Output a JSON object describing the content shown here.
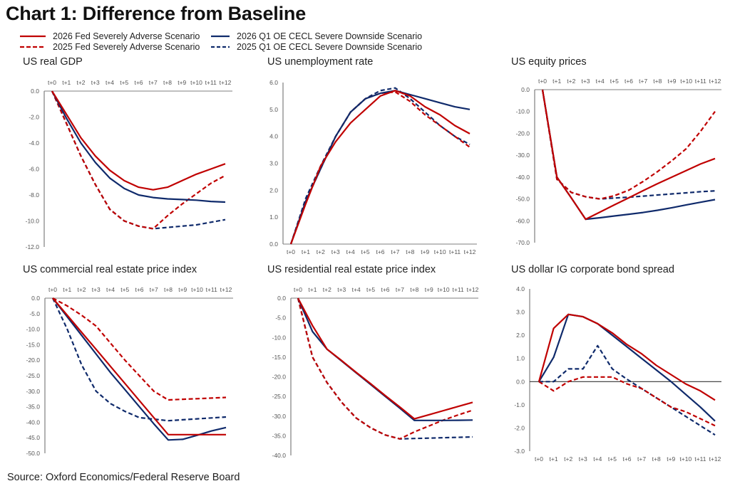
{
  "title": "Chart 1: Difference from Baseline",
  "source": "Source: Oxford Economics/Federal Reserve Board",
  "colors": {
    "fed": "#c00000",
    "oe": "#0f2a6b",
    "axis": "#7f7f7f"
  },
  "legend": [
    {
      "label": "2026 Fed Severely Adverse Scenario",
      "color": "#c00000",
      "dash": false
    },
    {
      "label": "2025 Fed Severely Adverse Scenario",
      "color": "#c00000",
      "dash": true
    },
    {
      "label": "2026 Q1 OE CECL Severe Downside Scenario",
      "color": "#0f2a6b",
      "dash": false
    },
    {
      "label": "2025 Q1 OE CECL Severe Downside Scenario",
      "color": "#0f2a6b",
      "dash": true
    }
  ],
  "chart_data": [
    {
      "type": "line",
      "title": "US real GDP",
      "categories": [
        "t+0",
        "t+1",
        "t+2",
        "t+3",
        "t+4",
        "t+5",
        "t+6",
        "t+7",
        "t+8",
        "t+9",
        "t+10",
        "t+11",
        "t+12"
      ],
      "ylim": [
        -12,
        0
      ],
      "yticks": [
        0,
        -2,
        -4,
        -6,
        -8,
        -10,
        -12
      ],
      "tick_decimals": 1,
      "xaxis_position": "top",
      "series": [
        {
          "name": "2025 Q1 OE CECL Severe Downside Scenario",
          "values": [
            0,
            -2.5,
            -5.0,
            -7.2,
            -9.1,
            -10.0,
            -10.4,
            -10.6,
            -10.5,
            -10.4,
            -10.3,
            -10.1,
            -9.9
          ]
        },
        {
          "name": "2025 Fed Severely Adverse Scenario",
          "values": [
            0,
            -2.5,
            -5.0,
            -7.2,
            -9.1,
            -10.0,
            -10.4,
            -10.6,
            -9.6,
            -8.7,
            -7.9,
            -7.1,
            -6.5
          ]
        },
        {
          "name": "2026 Q1 OE CECL Severe Downside Scenario",
          "values": [
            0,
            -2.1,
            -4.0,
            -5.5,
            -6.7,
            -7.5,
            -8.0,
            -8.2,
            -8.3,
            -8.35,
            -8.4,
            -8.5,
            -8.55
          ]
        },
        {
          "name": "2026 Fed Severely Adverse Scenario",
          "values": [
            0,
            -1.8,
            -3.6,
            -5.0,
            -6.1,
            -6.9,
            -7.4,
            -7.6,
            -7.4,
            -6.9,
            -6.4,
            -6.0,
            -5.6
          ]
        }
      ]
    },
    {
      "type": "line",
      "title": "US unemployment rate",
      "categories": [
        "t+0",
        "t+1",
        "t+2",
        "t+3",
        "t+4",
        "t+5",
        "t+6",
        "t+7",
        "t+8",
        "t+9",
        "t+10",
        "t+11",
        "t+12"
      ],
      "ylim": [
        0,
        6
      ],
      "yticks": [
        0,
        1,
        2,
        3,
        4,
        5,
        6
      ],
      "tick_decimals": 1,
      "xaxis_position": "bottom",
      "series": [
        {
          "name": "2025 Q1 OE CECL Severe Downside Scenario",
          "values": [
            0,
            1.7,
            2.9,
            4.0,
            4.9,
            5.4,
            5.7,
            5.8,
            5.4,
            4.9,
            4.4,
            4.0,
            3.7
          ]
        },
        {
          "name": "2025 Fed Severely Adverse Scenario",
          "values": [
            0,
            1.6,
            2.8,
            4.0,
            4.9,
            5.4,
            5.6,
            5.65,
            5.3,
            4.8,
            4.4,
            4.0,
            3.6
          ]
        },
        {
          "name": "2026 Q1 OE CECL Severe Downside Scenario",
          "values": [
            0,
            1.6,
            2.8,
            4.0,
            4.9,
            5.4,
            5.6,
            5.7,
            5.55,
            5.4,
            5.25,
            5.1,
            5.0
          ]
        },
        {
          "name": "2026 Fed Severely Adverse Scenario",
          "values": [
            0,
            1.5,
            2.9,
            3.8,
            4.5,
            5.0,
            5.5,
            5.7,
            5.5,
            5.1,
            4.8,
            4.4,
            4.1
          ]
        }
      ]
    },
    {
      "type": "line",
      "title": "US equity prices",
      "categories": [
        "t+0",
        "t+1",
        "t+2",
        "t+3",
        "t+4",
        "t+5",
        "t+6",
        "t+7",
        "t+8",
        "t+9",
        "t+10",
        "t+11",
        "t+12"
      ],
      "ylim": [
        -70,
        0
      ],
      "yticks": [
        0,
        -10,
        -20,
        -30,
        -40,
        -50,
        -60,
        -70
      ],
      "tick_decimals": 1,
      "xaxis_position": "top",
      "series": [
        {
          "name": "2025 Q1 OE CECL Severe Downside Scenario",
          "values": [
            0,
            -41,
            -47,
            -49,
            -50,
            -49.6,
            -49.2,
            -48.7,
            -48.2,
            -47.7,
            -47.2,
            -46.7,
            -46.3
          ]
        },
        {
          "name": "2025 Fed Severely Adverse Scenario",
          "values": [
            0,
            -41,
            -47,
            -49,
            -50,
            -48.5,
            -46,
            -42,
            -37.5,
            -32.5,
            -27,
            -19,
            -10
          ]
        },
        {
          "name": "2026 Q1 OE CECL Severe Downside Scenario",
          "values": [
            0,
            -40,
            -49.5,
            -59.3,
            -58.6,
            -57.8,
            -57,
            -56.2,
            -55.2,
            -54,
            -52.7,
            -51.5,
            -50.3
          ]
        },
        {
          "name": "2026 Fed Severely Adverse Scenario",
          "values": [
            0,
            -40,
            -49.5,
            -59.3,
            -56,
            -52.7,
            -49.5,
            -46.2,
            -43,
            -40,
            -37,
            -34,
            -31.5
          ]
        }
      ]
    },
    {
      "type": "line",
      "title": "US commercial real estate price index",
      "categories": [
        "t+0",
        "t+1",
        "t+2",
        "t+3",
        "t+4",
        "t+5",
        "t+6",
        "t+7",
        "t+8",
        "t+9",
        "t+10",
        "t+11",
        "t+12"
      ],
      "ylim": [
        -50,
        0
      ],
      "yticks": [
        0,
        -5,
        -10,
        -15,
        -20,
        -25,
        -30,
        -35,
        -40,
        -45,
        -50
      ],
      "tick_decimals": 1,
      "xaxis_position": "top",
      "series": [
        {
          "name": "2025 Q1 OE CECL Severe Downside Scenario",
          "values": [
            0,
            -10,
            -21.5,
            -30,
            -34,
            -36.5,
            -38.5,
            -39,
            -39.5,
            -39.2,
            -38.9,
            -38.6,
            -38.3
          ]
        },
        {
          "name": "2025 Fed Severely Adverse Scenario",
          "values": [
            0,
            -2.5,
            -5.5,
            -9,
            -14.5,
            -20,
            -25,
            -30,
            -32.8,
            -32.6,
            -32.4,
            -32.2,
            -32
          ]
        },
        {
          "name": "2026 Q1 OE CECL Severe Downside Scenario",
          "values": [
            0,
            -6,
            -12,
            -18,
            -24,
            -29.5,
            -35,
            -40.5,
            -45.7,
            -45.5,
            -44.2,
            -42.8,
            -41.7
          ]
        },
        {
          "name": "2026 Fed Severely Adverse Scenario",
          "values": [
            0,
            -5.5,
            -11,
            -16.5,
            -22,
            -27.5,
            -33,
            -38.5,
            -44,
            -44,
            -44,
            -44,
            -44
          ]
        }
      ]
    },
    {
      "type": "line",
      "title": "US residential real estate price index",
      "categories": [
        "t+0",
        "t+1",
        "t+2",
        "t+3",
        "t+4",
        "t+5",
        "t+6",
        "t+7",
        "t+8",
        "t+9",
        "t+10",
        "t+11",
        "t+12"
      ],
      "ylim": [
        -40,
        0
      ],
      "yticks": [
        0,
        -5,
        -10,
        -15,
        -20,
        -25,
        -30,
        -35,
        -40
      ],
      "tick_decimals": 1,
      "xaxis_position": "top",
      "series": [
        {
          "name": "2025 Q1 OE CECL Severe Downside Scenario",
          "values": [
            0,
            -15,
            -21.5,
            -26.5,
            -30.5,
            -33,
            -34.8,
            -35.8,
            -35.7,
            -35.6,
            -35.5,
            -35.4,
            -35.3
          ]
        },
        {
          "name": "2025 Fed Severely Adverse Scenario",
          "values": [
            0,
            -15,
            -21.5,
            -26.5,
            -30.5,
            -33,
            -34.8,
            -35.8,
            -34,
            -32.5,
            -31,
            -29.7,
            -28.5
          ]
        },
        {
          "name": "2026 Q1 OE CECL Severe Downside Scenario",
          "values": [
            0,
            -8.5,
            -13,
            -16,
            -19,
            -22,
            -25,
            -28,
            -31.1,
            -31.1,
            -31.1,
            -31.05,
            -31.0
          ]
        },
        {
          "name": "2026 Fed Severely Adverse Scenario",
          "values": [
            0,
            -7,
            -13,
            -15.9,
            -18.9,
            -21.8,
            -24.8,
            -27.7,
            -30.7,
            -29.65,
            -28.6,
            -27.55,
            -26.5
          ]
        }
      ]
    },
    {
      "type": "line",
      "title": "US dollar IG corporate bond spread",
      "categories": [
        "t+0",
        "t+1",
        "t+2",
        "t+3",
        "t+4",
        "t+5",
        "t+6",
        "t+7",
        "t+8",
        "t+9",
        "t+10",
        "t+11",
        "t+12"
      ],
      "ylim": [
        -3,
        4
      ],
      "yticks": [
        4,
        3,
        2,
        1,
        0,
        -1,
        -2,
        -3
      ],
      "tick_decimals": 1,
      "xaxis_position": "bottom",
      "zero_line": true,
      "series": [
        {
          "name": "2025 Q1 OE CECL Severe Downside Scenario",
          "values": [
            0,
            0,
            0.55,
            0.55,
            1.55,
            0.55,
            0.1,
            -0.3,
            -0.7,
            -1.1,
            -1.5,
            -1.9,
            -2.3
          ]
        },
        {
          "name": "2025 Fed Severely Adverse Scenario",
          "values": [
            0,
            -0.4,
            0,
            0.2,
            0.2,
            0.2,
            -0.1,
            -0.3,
            -0.7,
            -1.1,
            -1.3,
            -1.6,
            -1.9
          ]
        },
        {
          "name": "2026 Q1 OE CECL Severe Downside Scenario",
          "values": [
            0,
            1.05,
            2.9,
            2.8,
            2.5,
            2.0,
            1.5,
            1.0,
            0.5,
            0.0,
            -0.55,
            -1.1,
            -1.7
          ]
        },
        {
          "name": "2026 Fed Severely Adverse Scenario",
          "values": [
            0,
            2.3,
            2.9,
            2.8,
            2.5,
            2.1,
            1.6,
            1.2,
            0.7,
            0.3,
            -0.1,
            -0.4,
            -0.8
          ]
        }
      ]
    }
  ]
}
